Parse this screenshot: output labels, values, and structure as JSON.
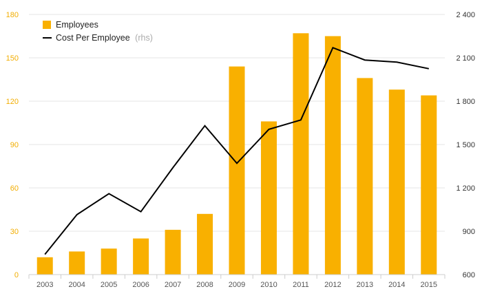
{
  "chart_data": {
    "type": "bar",
    "categories": [
      "2003",
      "2004",
      "2005",
      "2006",
      "2007",
      "2008",
      "2009",
      "2010",
      "2011",
      "2012",
      "2013",
      "2014",
      "2015"
    ],
    "series": [
      {
        "name": "Employees",
        "type": "bar",
        "axis": "left",
        "color": "#f9b000",
        "values": [
          12,
          16,
          18,
          25,
          31,
          42,
          144,
          106,
          167,
          165,
          136,
          128,
          124
        ]
      },
      {
        "name": "Cost Per Employee",
        "name_note": "(rhs)",
        "type": "line",
        "axis": "right",
        "color": "#000000",
        "values": [
          740,
          1015,
          1160,
          1035,
          1340,
          1630,
          1370,
          1605,
          1670,
          2170,
          2085,
          2070,
          2025
        ]
      }
    ],
    "y_left": {
      "min": 0,
      "max": 180,
      "ticks": [
        "0",
        "30",
        "60",
        "90",
        "120",
        "150",
        "180"
      ]
    },
    "y_right": {
      "min": 600,
      "max": 2400,
      "ticks": [
        "600",
        "900",
        "1 200",
        "1 500",
        "1 800",
        "2 100",
        "2 400"
      ]
    },
    "grid": true,
    "legend_position": "top-left"
  }
}
